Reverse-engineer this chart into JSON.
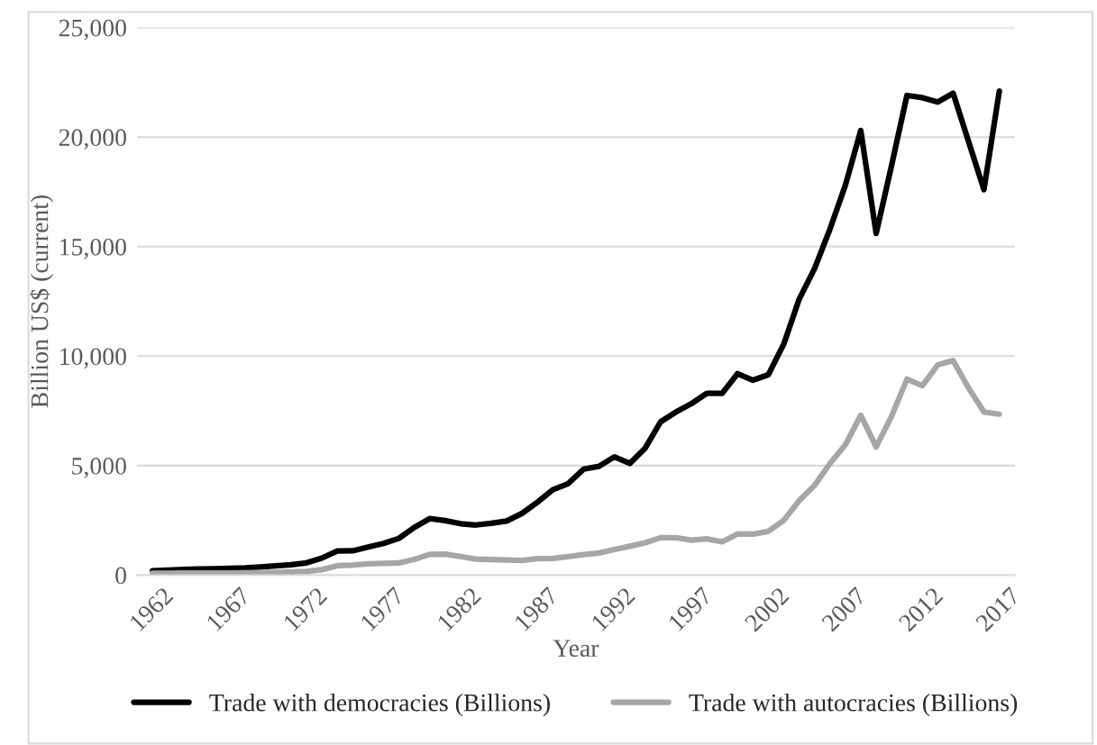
{
  "chart_data": {
    "type": "line",
    "xlabel": "Year",
    "ylabel": "Billion US$ (current)",
    "x": [
      1962,
      1963,
      1964,
      1965,
      1966,
      1967,
      1968,
      1969,
      1970,
      1971,
      1972,
      1973,
      1974,
      1975,
      1976,
      1977,
      1978,
      1979,
      1980,
      1981,
      1982,
      1983,
      1984,
      1985,
      1986,
      1987,
      1988,
      1989,
      1990,
      1991,
      1992,
      1993,
      1994,
      1995,
      1996,
      1997,
      1998,
      1999,
      2000,
      2001,
      2002,
      2003,
      2004,
      2005,
      2006,
      2007,
      2008,
      2009,
      2010,
      2011,
      2012,
      2013,
      2014,
      2015,
      2016,
      2017
    ],
    "series": [
      {
        "name": "Trade with democracies (Billions)",
        "color": "#000000",
        "values": [
          200,
          230,
          260,
          280,
          290,
          310,
          330,
          370,
          420,
          480,
          560,
          780,
          1100,
          1110,
          1280,
          1450,
          1680,
          2180,
          2580,
          2490,
          2350,
          2290,
          2370,
          2470,
          2820,
          3330,
          3900,
          4180,
          4840,
          4970,
          5400,
          5100,
          5800,
          7000,
          7450,
          7830,
          8300,
          8300,
          9200,
          8900,
          9150,
          10550,
          12600,
          14000,
          15800,
          17800,
          20300,
          15600,
          18700,
          21900,
          21800,
          21600,
          22000,
          19800,
          17600,
          22100
        ]
      },
      {
        "name": "Trade with autocracies (Billions)",
        "color": "#a6a6a6",
        "values": [
          80,
          90,
          100,
          100,
          100,
          100,
          110,
          120,
          130,
          150,
          170,
          250,
          430,
          460,
          520,
          540,
          560,
          720,
          950,
          960,
          850,
          730,
          710,
          690,
          670,
          750,
          760,
          850,
          940,
          1010,
          1170,
          1320,
          1480,
          1710,
          1710,
          1600,
          1660,
          1520,
          1880,
          1870,
          2000,
          2500,
          3400,
          4100,
          5100,
          5950,
          7300,
          5850,
          7250,
          8950,
          8650,
          9600,
          9800,
          8550,
          7450,
          7350
        ]
      }
    ],
    "xlim": [
      1961,
      2018
    ],
    "xticks": [
      1962,
      1967,
      1972,
      1977,
      1982,
      1987,
      1992,
      1997,
      2002,
      2007,
      2012,
      2017
    ],
    "ylim": [
      0,
      25000
    ],
    "yticks": [
      0,
      {
        "value": 5000,
        "label": "5,000"
      },
      {
        "value": 10000,
        "label": "10,000"
      },
      {
        "value": 15000,
        "label": "15,000"
      },
      {
        "value": 20000,
        "label": "20,000"
      },
      {
        "value": 25000,
        "label": "25,000"
      }
    ],
    "grid": "y",
    "legend": "bottom",
    "marker": "none",
    "line_style": "solid"
  }
}
